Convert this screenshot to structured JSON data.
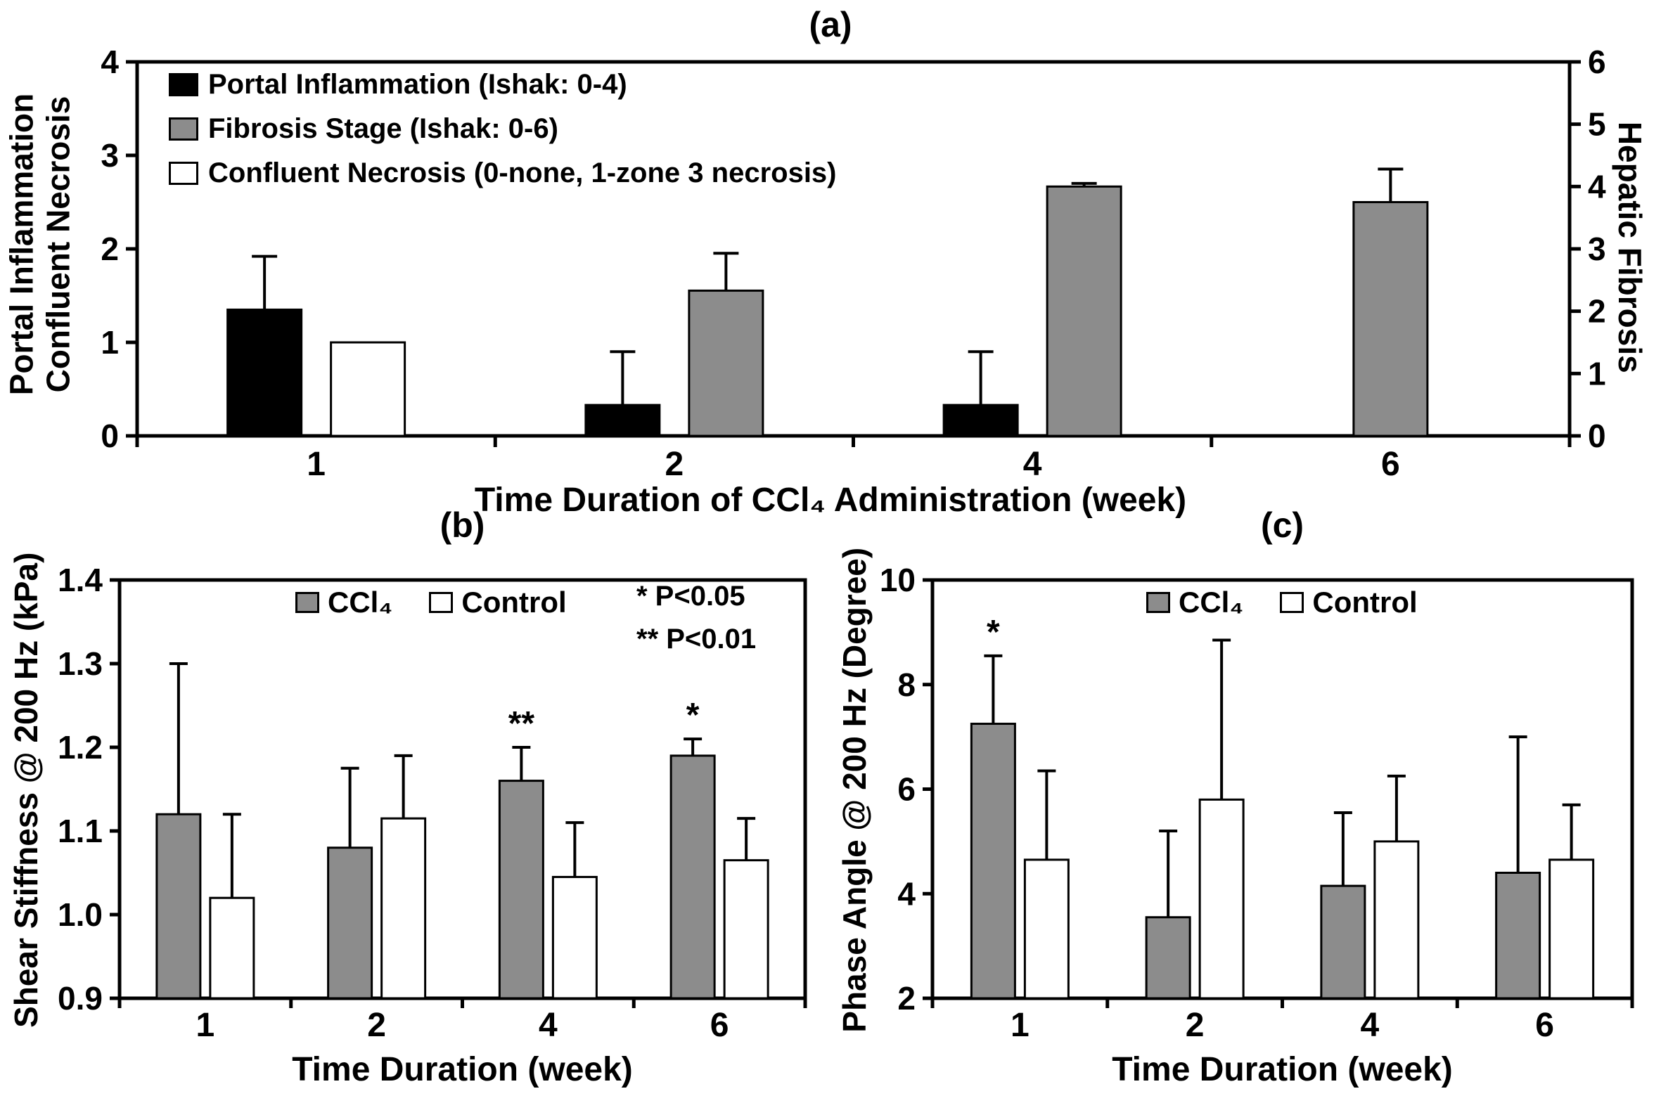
{
  "figure": {
    "background": "#ffffff",
    "bar_gray": "#8c8c8c",
    "bar_black": "#000000",
    "bar_white": "#ffffff"
  },
  "chart_data": [
    {
      "id": "a",
      "type": "bar",
      "title": "(a)",
      "xlabel": "Time Duration of CCl₄ Administration (week)",
      "ylabel_left_line1": "Portal Inflammation",
      "ylabel_left_line2": "Confluent Necrosis",
      "ylabel_right": "Hepatic Fibrosis",
      "ylim_left": [
        0,
        4
      ],
      "yticks_left": [
        "0",
        "1",
        "2",
        "3",
        "4"
      ],
      "ylim_right": [
        0,
        6
      ],
      "yticks_right": [
        "0",
        "1",
        "2",
        "3",
        "4",
        "5",
        "6"
      ],
      "categories": [
        "1",
        "2",
        "4",
        "6"
      ],
      "grid": false,
      "legend_position": "top-left-inside",
      "series": [
        {
          "name": "Portal Inflammation (Ishak: 0-4)",
          "color": "#000000",
          "axis": "left",
          "values": [
            1.35,
            0.33,
            0.33,
            null
          ],
          "errors_up": [
            0.57,
            0.57,
            0.57,
            null
          ],
          "sig": [
            "",
            "",
            "",
            ""
          ]
        },
        {
          "name": "Confluent Necrosis (0-none, 1-zone 3 necrosis)",
          "color": "#ffffff",
          "axis": "left",
          "values": [
            1.0,
            null,
            null,
            null
          ],
          "errors_up": [
            0,
            null,
            null,
            null
          ],
          "sig": [
            "",
            "",
            "",
            ""
          ]
        },
        {
          "name": "Fibrosis Stage (Ishak: 0-6)",
          "color": "#8c8c8c",
          "axis": "right",
          "values": [
            null,
            2.33,
            4.0,
            3.75
          ],
          "errors_up": [
            null,
            0.6,
            0.05,
            0.53
          ],
          "sig": [
            "",
            "",
            "",
            ""
          ]
        }
      ]
    },
    {
      "id": "b",
      "type": "bar",
      "title": "(b)",
      "xlabel": "Time Duration (week)",
      "ylabel": "Shear Stiffness @ 200 Hz (kPa)",
      "ylim": [
        0.9,
        1.4
      ],
      "yticks": [
        "0.9",
        "1.0",
        "1.1",
        "1.2",
        "1.3",
        "1.4"
      ],
      "categories": [
        "1",
        "2",
        "4",
        "6"
      ],
      "grid": false,
      "legend_position": "top-inside",
      "notes": [
        "* P<0.05",
        "** P<0.01"
      ],
      "series": [
        {
          "name": "CCl₄",
          "color": "#8c8c8c",
          "values": [
            1.12,
            1.08,
            1.16,
            1.19
          ],
          "errors_up": [
            0.18,
            0.095,
            0.04,
            0.02
          ],
          "sig": [
            "",
            "",
            "**",
            "*"
          ]
        },
        {
          "name": "Control",
          "color": "#ffffff",
          "values": [
            1.02,
            1.115,
            1.045,
            1.065
          ],
          "errors_up": [
            0.1,
            0.075,
            0.065,
            0.05
          ],
          "sig": [
            "",
            "",
            "",
            ""
          ]
        }
      ]
    },
    {
      "id": "c",
      "type": "bar",
      "title": "(c)",
      "xlabel": "Time Duration (week)",
      "ylabel": "Phase Angle @ 200 Hz (Degree)",
      "ylim": [
        2,
        10
      ],
      "yticks": [
        "2",
        "4",
        "6",
        "8",
        "10"
      ],
      "categories": [
        "1",
        "2",
        "4",
        "6"
      ],
      "grid": false,
      "legend_position": "top-inside",
      "series": [
        {
          "name": "CCl₄",
          "color": "#8c8c8c",
          "values": [
            7.25,
            3.55,
            4.15,
            4.4
          ],
          "errors_up": [
            1.3,
            1.65,
            1.4,
            2.6
          ],
          "sig": [
            "*",
            "",
            "",
            ""
          ]
        },
        {
          "name": "Control",
          "color": "#ffffff",
          "values": [
            4.65,
            5.8,
            5.0,
            4.65
          ],
          "errors_up": [
            1.7,
            3.05,
            1.25,
            1.05
          ],
          "sig": [
            "",
            "",
            "",
            ""
          ]
        }
      ]
    }
  ]
}
